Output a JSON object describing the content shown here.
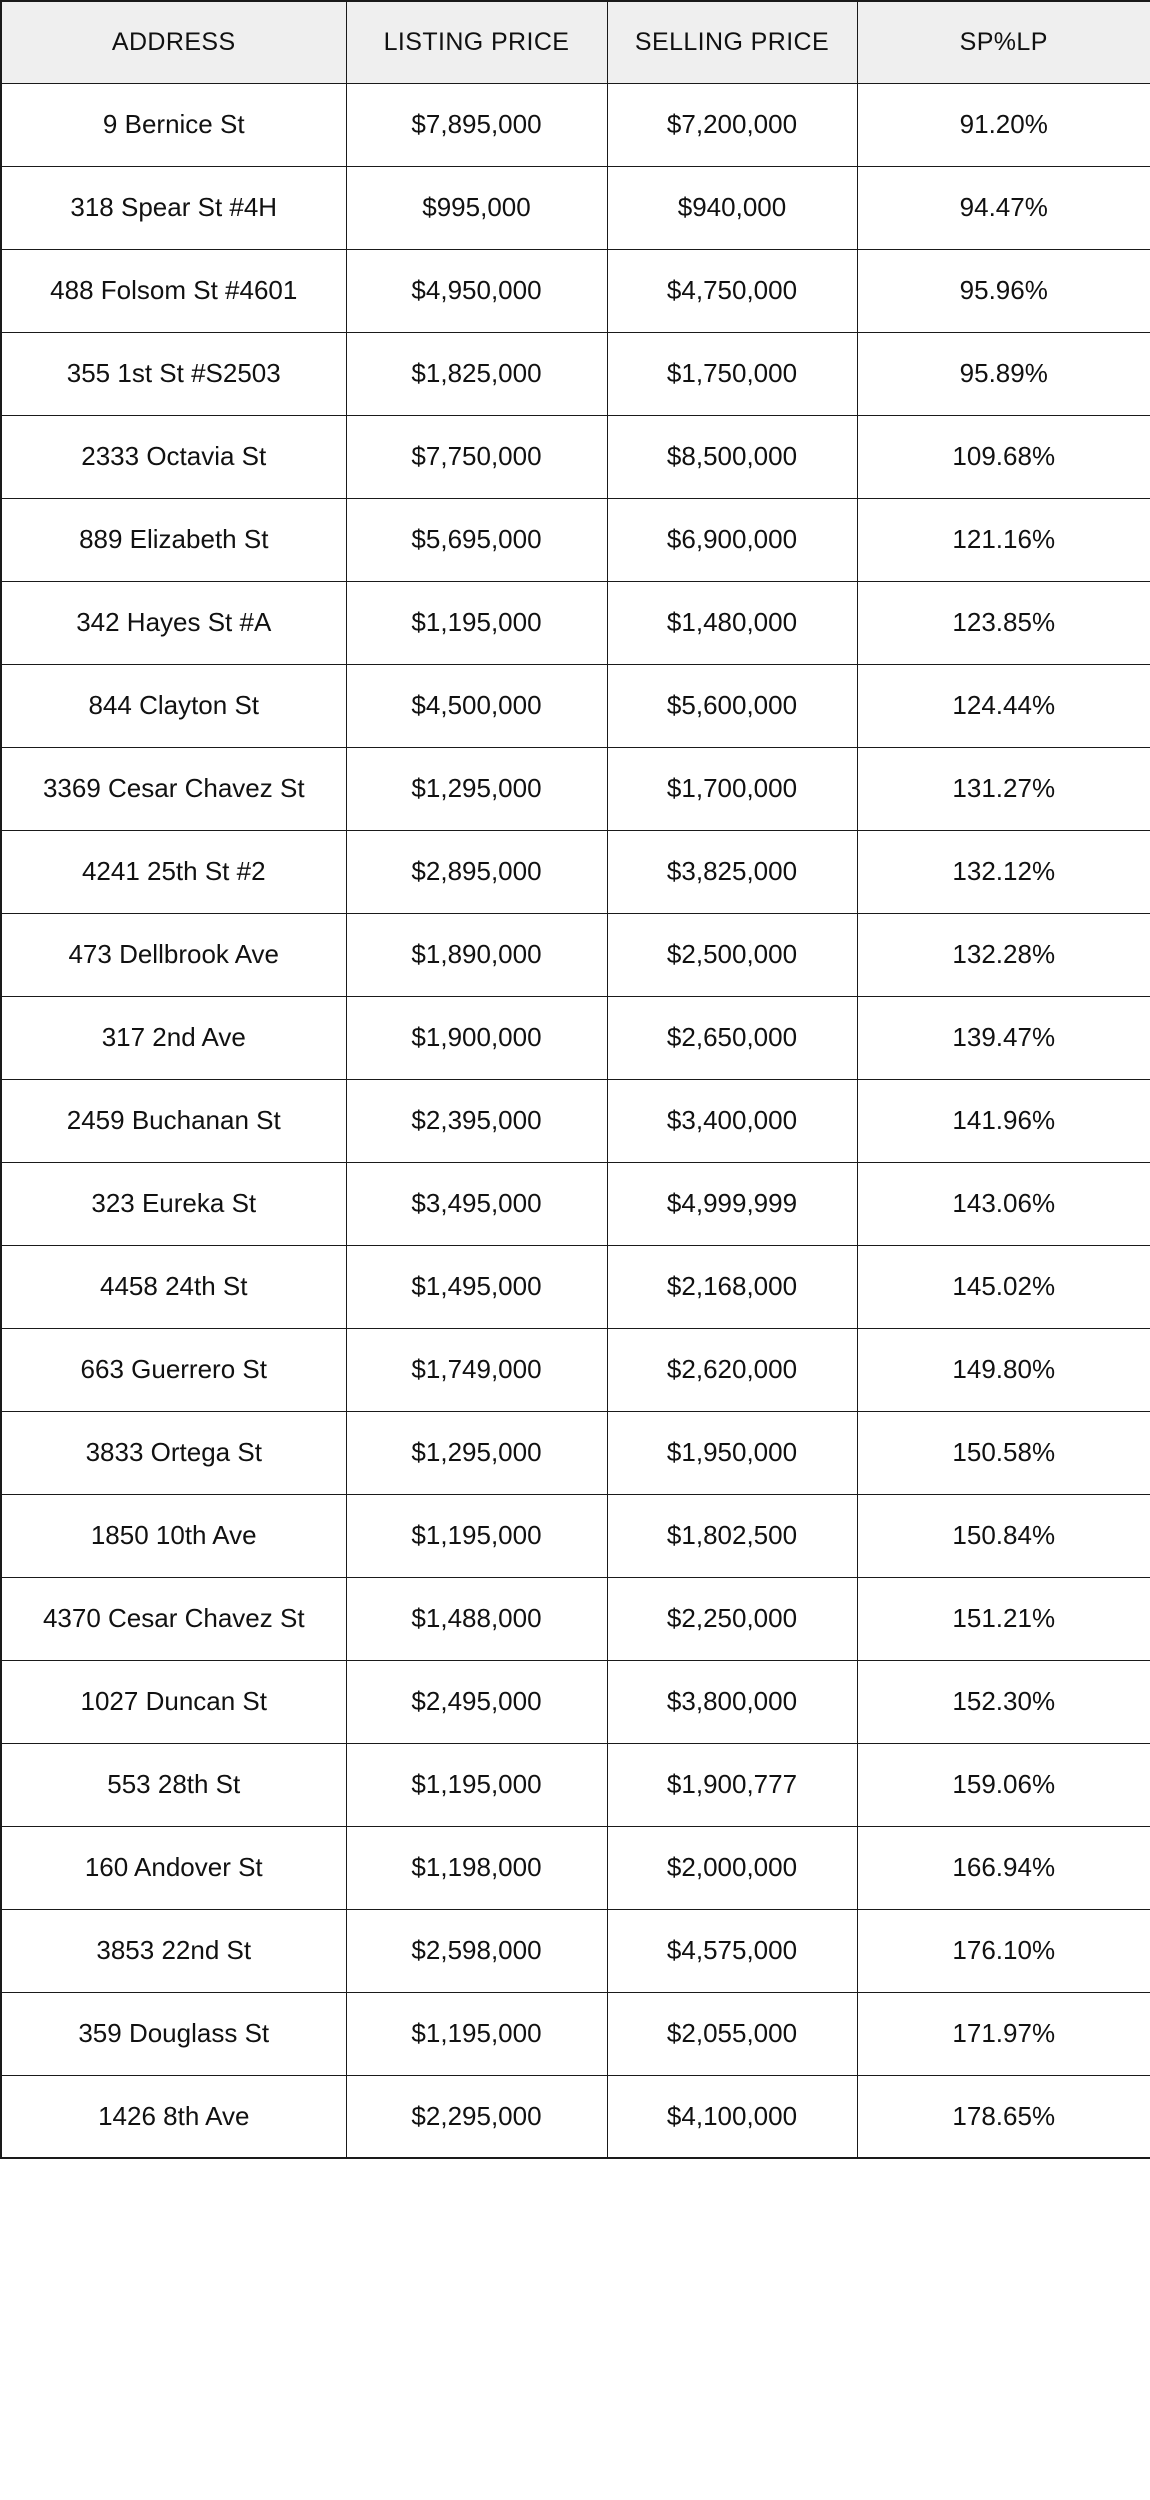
{
  "chart_data": {
    "type": "table",
    "columns": [
      "ADDRESS",
      "LISTING PRICE",
      "SELLING PRICE",
      "SP%LP"
    ],
    "rows": [
      {
        "address": "9 Bernice St",
        "listing_price": "$7,895,000",
        "selling_price": "$7,200,000",
        "sp_pct_lp": "91.20%"
      },
      {
        "address": "318 Spear St #4H",
        "listing_price": "$995,000",
        "selling_price": "$940,000",
        "sp_pct_lp": "94.47%"
      },
      {
        "address": "488 Folsom St #4601",
        "listing_price": "$4,950,000",
        "selling_price": "$4,750,000",
        "sp_pct_lp": "95.96%"
      },
      {
        "address": "355 1st St #S2503",
        "listing_price": "$1,825,000",
        "selling_price": "$1,750,000",
        "sp_pct_lp": "95.89%"
      },
      {
        "address": "2333 Octavia St",
        "listing_price": "$7,750,000",
        "selling_price": "$8,500,000",
        "sp_pct_lp": "109.68%"
      },
      {
        "address": "889 Elizabeth St",
        "listing_price": "$5,695,000",
        "selling_price": "$6,900,000",
        "sp_pct_lp": "121.16%"
      },
      {
        "address": "342 Hayes St #A",
        "listing_price": "$1,195,000",
        "selling_price": "$1,480,000",
        "sp_pct_lp": "123.85%"
      },
      {
        "address": "844 Clayton St",
        "listing_price": "$4,500,000",
        "selling_price": "$5,600,000",
        "sp_pct_lp": "124.44%"
      },
      {
        "address": "3369 Cesar Chavez St",
        "listing_price": "$1,295,000",
        "selling_price": "$1,700,000",
        "sp_pct_lp": "131.27%"
      },
      {
        "address": "4241 25th St #2",
        "listing_price": "$2,895,000",
        "selling_price": "$3,825,000",
        "sp_pct_lp": "132.12%"
      },
      {
        "address": "473 Dellbrook Ave",
        "listing_price": "$1,890,000",
        "selling_price": "$2,500,000",
        "sp_pct_lp": "132.28%"
      },
      {
        "address": "317 2nd Ave",
        "listing_price": "$1,900,000",
        "selling_price": "$2,650,000",
        "sp_pct_lp": "139.47%"
      },
      {
        "address": "2459 Buchanan St",
        "listing_price": "$2,395,000",
        "selling_price": "$3,400,000",
        "sp_pct_lp": "141.96%"
      },
      {
        "address": "323 Eureka St",
        "listing_price": "$3,495,000",
        "selling_price": "$4,999,999",
        "sp_pct_lp": "143.06%"
      },
      {
        "address": "4458 24th St",
        "listing_price": "$1,495,000",
        "selling_price": "$2,168,000",
        "sp_pct_lp": "145.02%"
      },
      {
        "address": "663 Guerrero St",
        "listing_price": "$1,749,000",
        "selling_price": "$2,620,000",
        "sp_pct_lp": "149.80%"
      },
      {
        "address": "3833 Ortega St",
        "listing_price": "$1,295,000",
        "selling_price": "$1,950,000",
        "sp_pct_lp": "150.58%"
      },
      {
        "address": "1850 10th Ave",
        "listing_price": "$1,195,000",
        "selling_price": "$1,802,500",
        "sp_pct_lp": "150.84%"
      },
      {
        "address": "4370 Cesar Chavez St",
        "listing_price": "$1,488,000",
        "selling_price": "$2,250,000",
        "sp_pct_lp": "151.21%"
      },
      {
        "address": "1027 Duncan St",
        "listing_price": "$2,495,000",
        "selling_price": "$3,800,000",
        "sp_pct_lp": "152.30%"
      },
      {
        "address": "553 28th St",
        "listing_price": "$1,195,000",
        "selling_price": "$1,900,777",
        "sp_pct_lp": "159.06%"
      },
      {
        "address": "160 Andover St",
        "listing_price": "$1,198,000",
        "selling_price": "$2,000,000",
        "sp_pct_lp": "166.94%"
      },
      {
        "address": "3853 22nd St",
        "listing_price": "$2,598,000",
        "selling_price": "$4,575,000",
        "sp_pct_lp": "176.10%"
      },
      {
        "address": "359 Douglass St",
        "listing_price": "$1,195,000",
        "selling_price": "$2,055,000",
        "sp_pct_lp": "171.97%"
      },
      {
        "address": "1426 8th Ave",
        "listing_price": "$2,295,000",
        "selling_price": "$4,100,000",
        "sp_pct_lp": "178.65%"
      }
    ]
  },
  "styles": {
    "header_bg": "#efefef",
    "border_color": "#1a1a1a",
    "text_color": "#111111",
    "page_bg": "#ffffff"
  }
}
